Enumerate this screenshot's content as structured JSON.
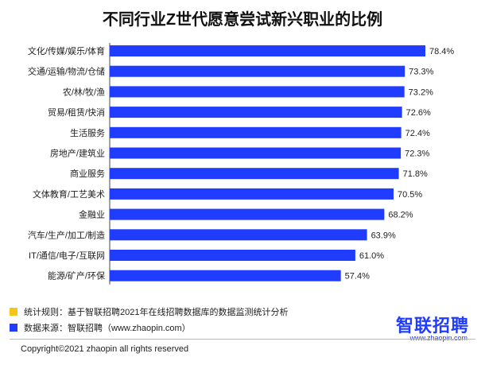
{
  "title": "不同行业Z世代愿意尝试新兴职业的比例",
  "chart_data": {
    "type": "bar",
    "orientation": "horizontal",
    "categories": [
      "文化/传媒/娱乐/体育",
      "交通/运输/物流/仓储",
      "农/林/牧/渔",
      "贸易/租赁/快消",
      "生活服务",
      "房地产/建筑业",
      "商业服务",
      "文体教育/工艺美术",
      "金融业",
      "汽车/生产/加工/制造",
      "IT/通信/电子/互联网",
      "能源/矿产/环保"
    ],
    "values": [
      78.4,
      73.3,
      73.2,
      72.6,
      72.4,
      72.3,
      71.8,
      70.5,
      68.2,
      63.9,
      61.0,
      57.4
    ],
    "value_labels": [
      "78.4%",
      "73.3%",
      "73.2%",
      "72.6%",
      "72.4%",
      "72.3%",
      "71.8%",
      "70.5%",
      "68.2%",
      "63.9%",
      "61.0%",
      "57.4%"
    ],
    "unit": "%",
    "xlim": [
      0,
      78.4
    ],
    "bar_color": "#1f3cff",
    "grid": false,
    "legend": "none"
  },
  "footer": {
    "note1": "统计规则：基于智联招聘2021年在线招聘数据库的数据监测统计分析",
    "note1_color": "#f5c518",
    "note2": "数据来源：智联招聘（www.zhaopin.com）",
    "note2_color": "#1f3cff",
    "brand": "智联招聘",
    "brand_sub": "www.zhaopin.com",
    "copyright": "Copyright©2021 zhaopin  all rights reserved"
  }
}
